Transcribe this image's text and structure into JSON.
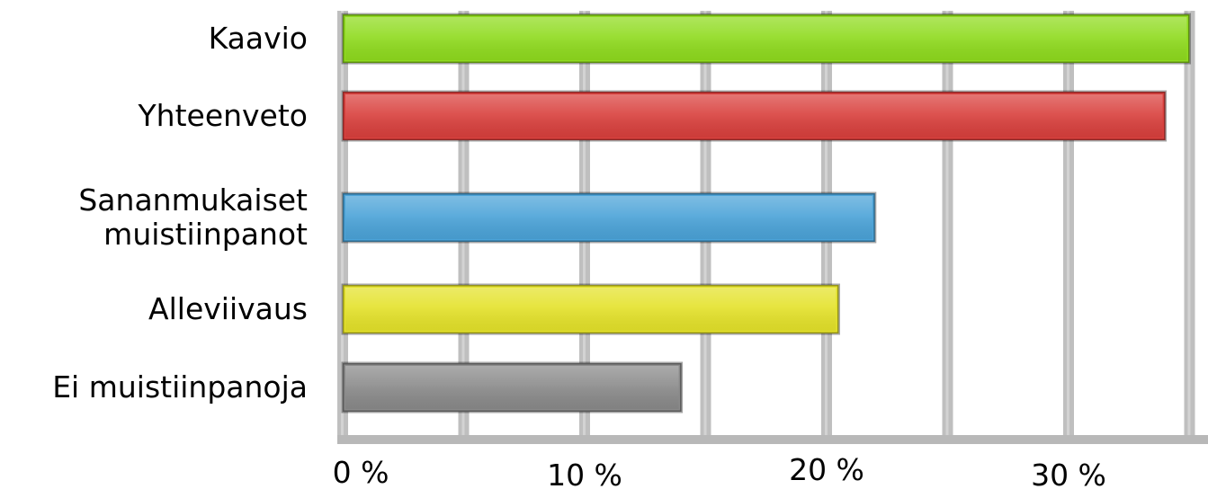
{
  "chart_data": {
    "type": "bar",
    "orientation": "horizontal",
    "categories": [
      [
        "Kaavio"
      ],
      [
        "Yhteenveto"
      ],
      [
        "Sananmukaiset",
        "muistiinpanot"
      ],
      [
        "Alleviivaus"
      ],
      [
        "Ei muistiinpanoja"
      ]
    ],
    "values": [
      35,
      34,
      22,
      20.5,
      14
    ],
    "colors": [
      "#8fdb1e",
      "#d9403d",
      "#4ba3d8",
      "#e4e22a",
      "#8a8a8a"
    ],
    "tick_labels": [
      "0 %",
      "10 %",
      "20 %",
      "30 %"
    ],
    "tick_values": [
      0,
      10,
      20,
      30
    ],
    "xlim": [
      0,
      36.5
    ],
    "grid": true,
    "title": "",
    "xlabel": "",
    "ylabel": ""
  }
}
